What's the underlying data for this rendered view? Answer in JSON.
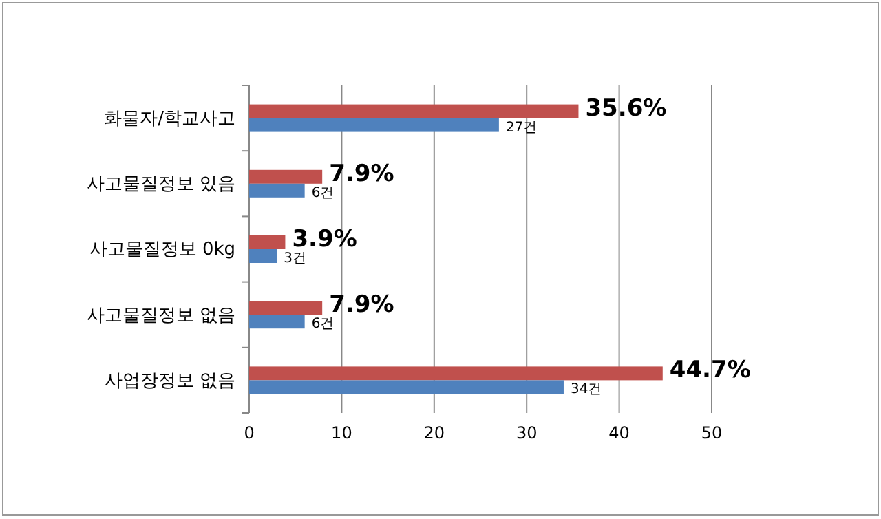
{
  "chart_data": {
    "type": "bar",
    "orientation": "horizontal",
    "categories": [
      "화물자/학교사고",
      "사고물질정보 있음",
      "사고물질정보 0kg",
      "사고물질정보 없음",
      "사업장정보 없음"
    ],
    "series": [
      {
        "color": "#c0504d",
        "values": [
          35.6,
          7.9,
          3.9,
          7.9,
          44.7
        ],
        "value_labels": [
          "35.6%",
          "7.9%",
          "3.9%",
          "7.9%",
          "44.7%"
        ]
      },
      {
        "color": "#4f81bd",
        "values": [
          27,
          6,
          3,
          6,
          34
        ],
        "value_labels": [
          "27건",
          "6건",
          "3건",
          "6건",
          "34건"
        ]
      }
    ],
    "xlim": [
      0,
      50
    ],
    "xticks": [
      0,
      10,
      20,
      30,
      40,
      50
    ],
    "grid": "x"
  }
}
